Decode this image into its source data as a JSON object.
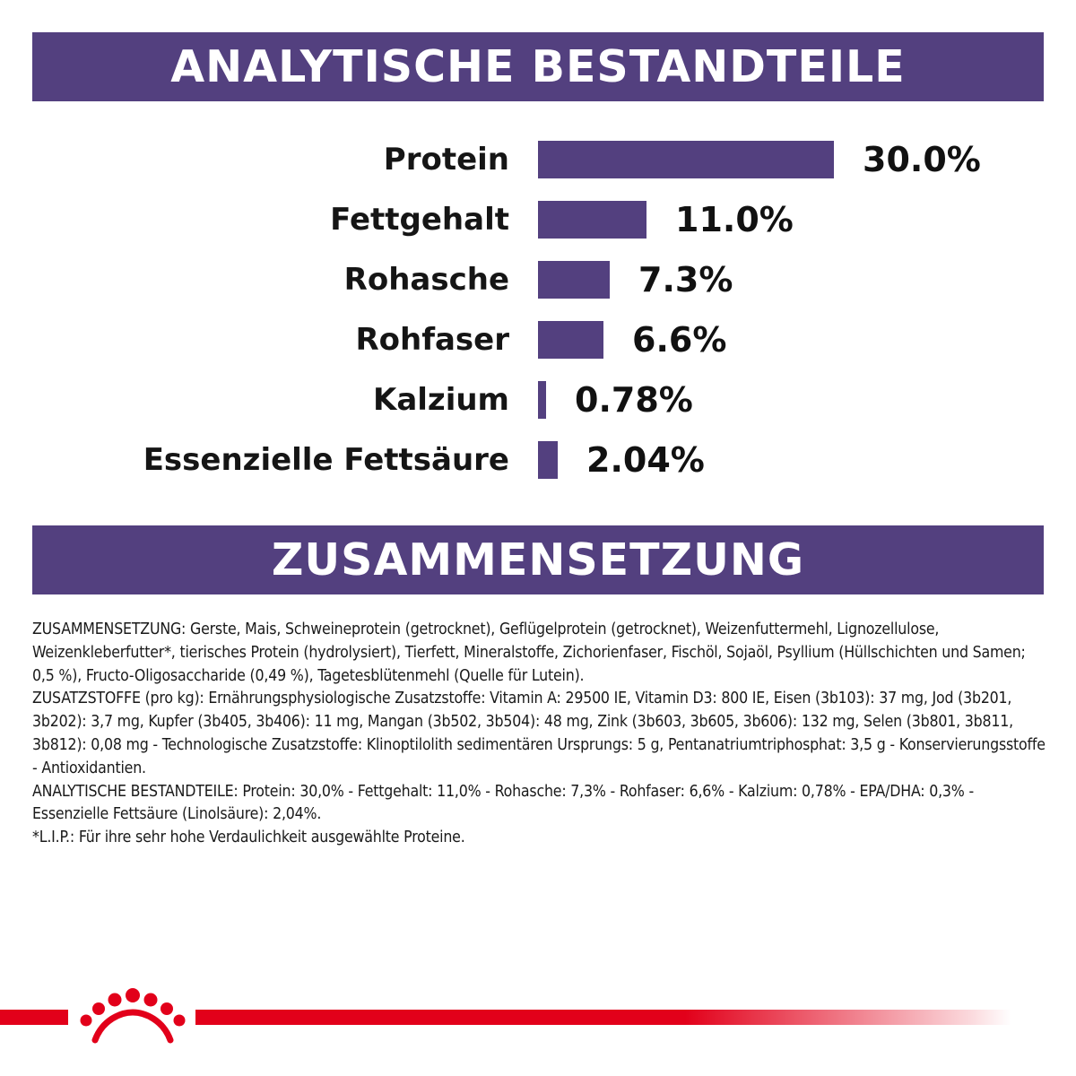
{
  "headings": {
    "analytics": "ANALYTISCHE BESTANDTEILE",
    "composition": "ZUSAMMENSETZUNG"
  },
  "colors": {
    "accent_purple": "#53407f",
    "brand_red": "#e2001a"
  },
  "chart_data": {
    "type": "bar",
    "orientation": "horizontal",
    "categories": [
      "Protein",
      "Fettgehalt",
      "Rohasche",
      "Rohfaser",
      "Kalzium",
      "Essenzielle Fettsäure"
    ],
    "values": [
      30.0,
      11.0,
      7.3,
      6.6,
      0.78,
      2.04
    ],
    "value_labels": [
      "30.0%",
      "11.0%",
      "7.3%",
      "6.6%",
      "0.78%",
      "2.04%"
    ],
    "unit": "%",
    "title": "ANALYTISCHE BESTANDTEILE",
    "xlabel": "",
    "ylabel": "",
    "grid": false,
    "legend": "none"
  },
  "composition_paragraphs": [
    "ZUSAMMENSETZUNG: Gerste, Mais, Schweineprotein (getrocknet), Geflügelprotein (getrocknet), Weizenfuttermehl, Lignozellulose, Weizenkleberfutter*, tierisches Protein (hydrolysiert), Tierfett, Mineralstoffe, Zichorienfaser, Fischöl, Sojaöl, Psyllium (Hüllschichten und Samen; 0,5 %), Fructo-Oligosaccharide (0,49 %), Tagetesblütenmehl (Quelle für Lutein).",
    "ZUSATZSTOFFE (pro kg): Ernährungsphysiologische Zusatzstoffe: Vitamin A: 29500 IE, Vitamin D3: 800 IE, Eisen (3b103): 37 mg, Jod (3b201, 3b202): 3,7 mg, Kupfer (3b405, 3b406): 11 mg, Mangan (3b502, 3b504): 48 mg, Zink (3b603, 3b605, 3b606): 132 mg, Selen (3b801, 3b811, 3b812): 0,08 mg - Technologische Zusatzstoffe: Klinoptilolith sedimentären Ursprungs: 5 g, Pentanatriumtriphosphat: 3,5 g - Konservierungsstoffe - Antioxidantien.",
    "ANALYTISCHE BESTANDTEILE: Protein: 30,0% - Fettgehalt: 11,0% - Rohasche: 7,3% - Rohfaser: 6,6% - Kalzium: 0,78% - EPA/DHA: 0,3% - Essenzielle Fettsäure (Linolsäure): 2,04%.",
    "*L.I.P.: Für ihre sehr hohe Verdaulichkeit ausgewählte Proteine."
  ],
  "footer": {
    "logo_icon": "royal-canin-crown-icon"
  }
}
